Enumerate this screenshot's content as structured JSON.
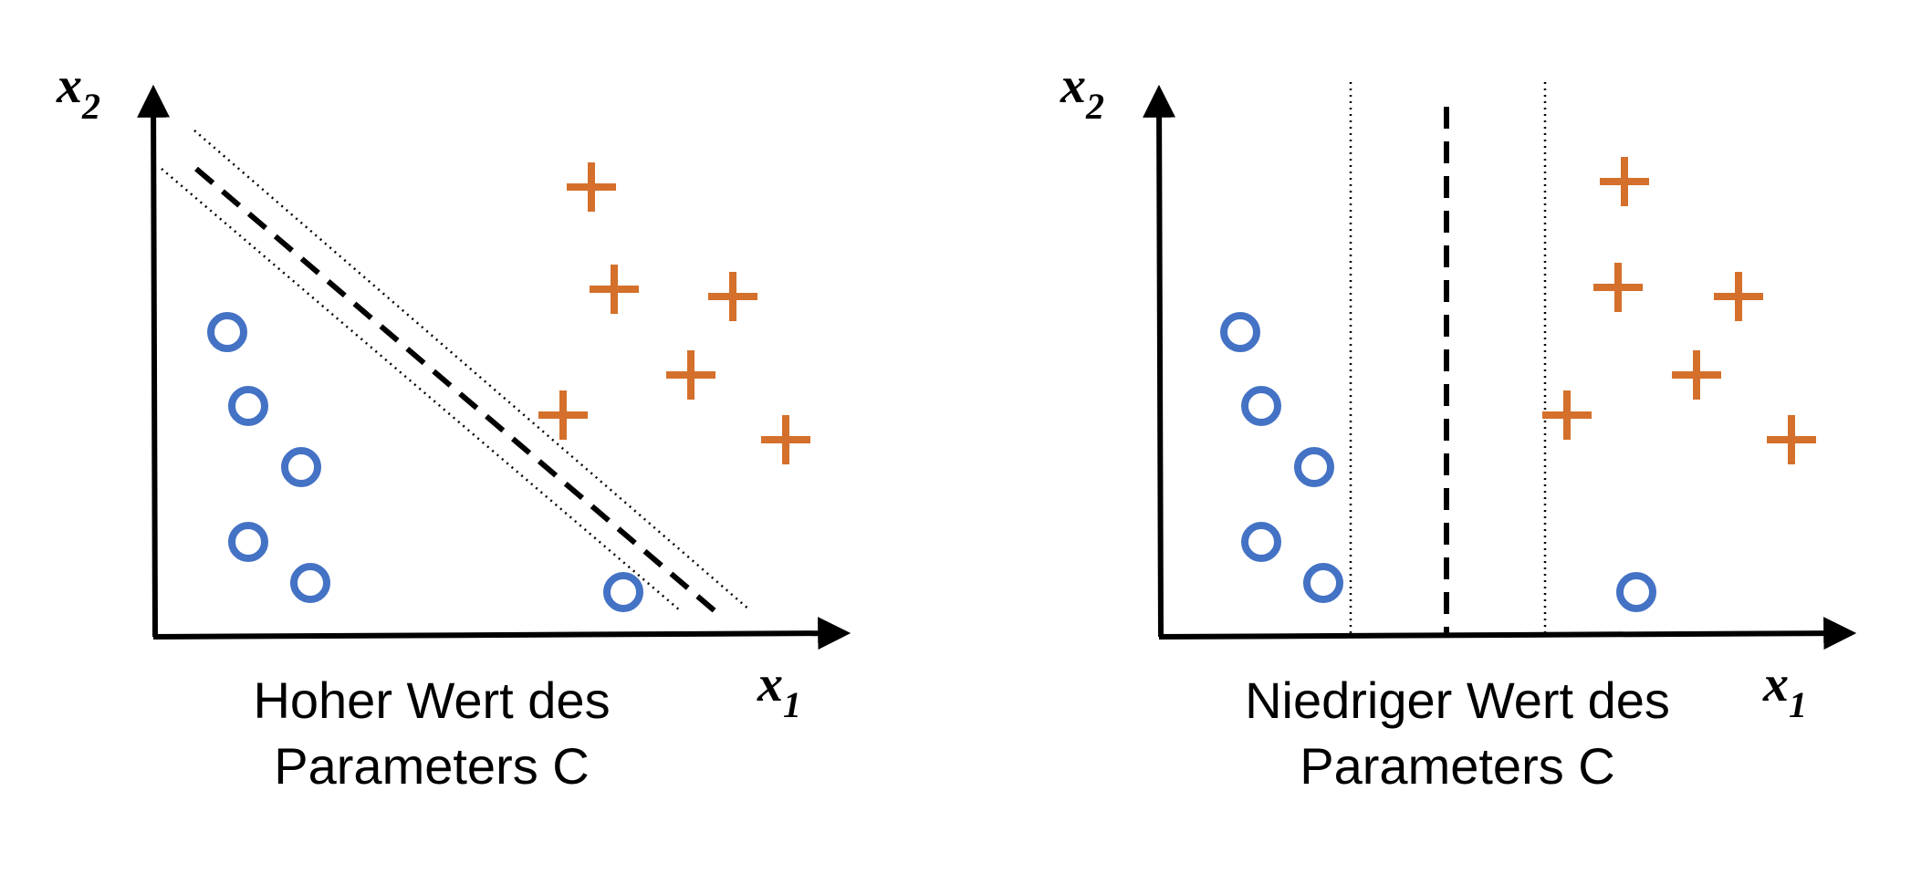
{
  "colors": {
    "circle": "#4472c4",
    "plus": "#d4702b",
    "axis": "#000000",
    "line": "#000000"
  },
  "left_panel": {
    "y_axis_label": "x",
    "y_axis_sub": "2",
    "x_axis_label": "x",
    "x_axis_sub": "1",
    "caption_line1": "Hoher Wert des",
    "caption_line2": "Parameters C"
  },
  "right_panel": {
    "y_axis_label": "x",
    "y_axis_sub": "2",
    "x_axis_label": "x",
    "x_axis_sub": "1",
    "caption_line1": "Niedriger Wert des",
    "caption_line2": "Parameters C"
  }
}
